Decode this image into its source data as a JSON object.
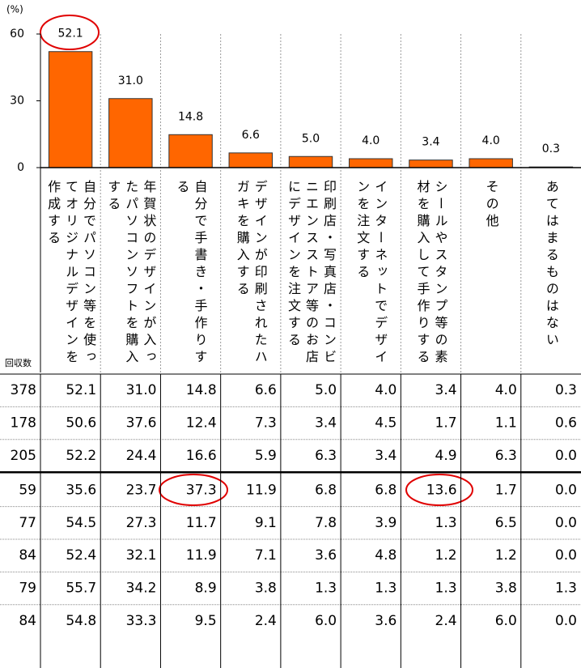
{
  "chart_data": {
    "type": "bar",
    "y_label": "(%)",
    "categories": [
      "自分でパソコン等を使ってオリジナルデザインを作成する",
      "年賀状のデザインが入ったパソコンソフトを購入する",
      "自分で手書き・手作りする",
      "デザインが印刷されたハガキを購入する",
      "印刷店・写真店・コンビニエンスストア等のお店にデザインを注文する",
      "インターネットでデザインを注文する",
      "シールやスタンプ等の素材を購入して手作りする",
      "その他",
      "あてはまるものはない"
    ],
    "values": [
      52.1,
      31.0,
      14.8,
      6.6,
      5.0,
      4.0,
      3.4,
      4.0,
      0.3
    ],
    "value_labels": [
      "52.1",
      "31.0",
      "14.8",
      "6.6",
      "5.0",
      "4.0",
      "3.4",
      "4.0",
      "0.3"
    ],
    "color": "#ff6600",
    "ylim": [
      0,
      60
    ],
    "yticks": [
      0,
      30,
      60
    ]
  },
  "table": {
    "header": "回収数",
    "rows": [
      [
        "378",
        "52.1",
        "31.0",
        "14.8",
        "6.6",
        "5.0",
        "4.0",
        "3.4",
        "4.0",
        "0.3"
      ],
      [
        "178",
        "50.6",
        "37.6",
        "12.4",
        "7.3",
        "3.4",
        "4.5",
        "1.7",
        "1.1",
        "0.6"
      ],
      [
        "205",
        "52.2",
        "24.4",
        "16.6",
        "5.9",
        "6.3",
        "3.4",
        "4.9",
        "6.3",
        "0.0"
      ],
      [
        "59",
        "35.6",
        "23.7",
        "37.3",
        "11.9",
        "6.8",
        "6.8",
        "13.6",
        "1.7",
        "0.0"
      ],
      [
        "77",
        "54.5",
        "27.3",
        "11.7",
        "9.1",
        "7.8",
        "3.9",
        "1.3",
        "6.5",
        "0.0"
      ],
      [
        "84",
        "52.4",
        "32.1",
        "11.9",
        "7.1",
        "3.6",
        "4.8",
        "1.2",
        "1.2",
        "0.0"
      ],
      [
        "79",
        "55.7",
        "34.2",
        "8.9",
        "3.8",
        "1.3",
        "1.3",
        "1.3",
        "3.8",
        "1.3"
      ],
      [
        "84",
        "54.8",
        "33.3",
        "9.5",
        "2.4",
        "6.0",
        "3.6",
        "2.4",
        "6.0",
        "0.0"
      ]
    ]
  }
}
